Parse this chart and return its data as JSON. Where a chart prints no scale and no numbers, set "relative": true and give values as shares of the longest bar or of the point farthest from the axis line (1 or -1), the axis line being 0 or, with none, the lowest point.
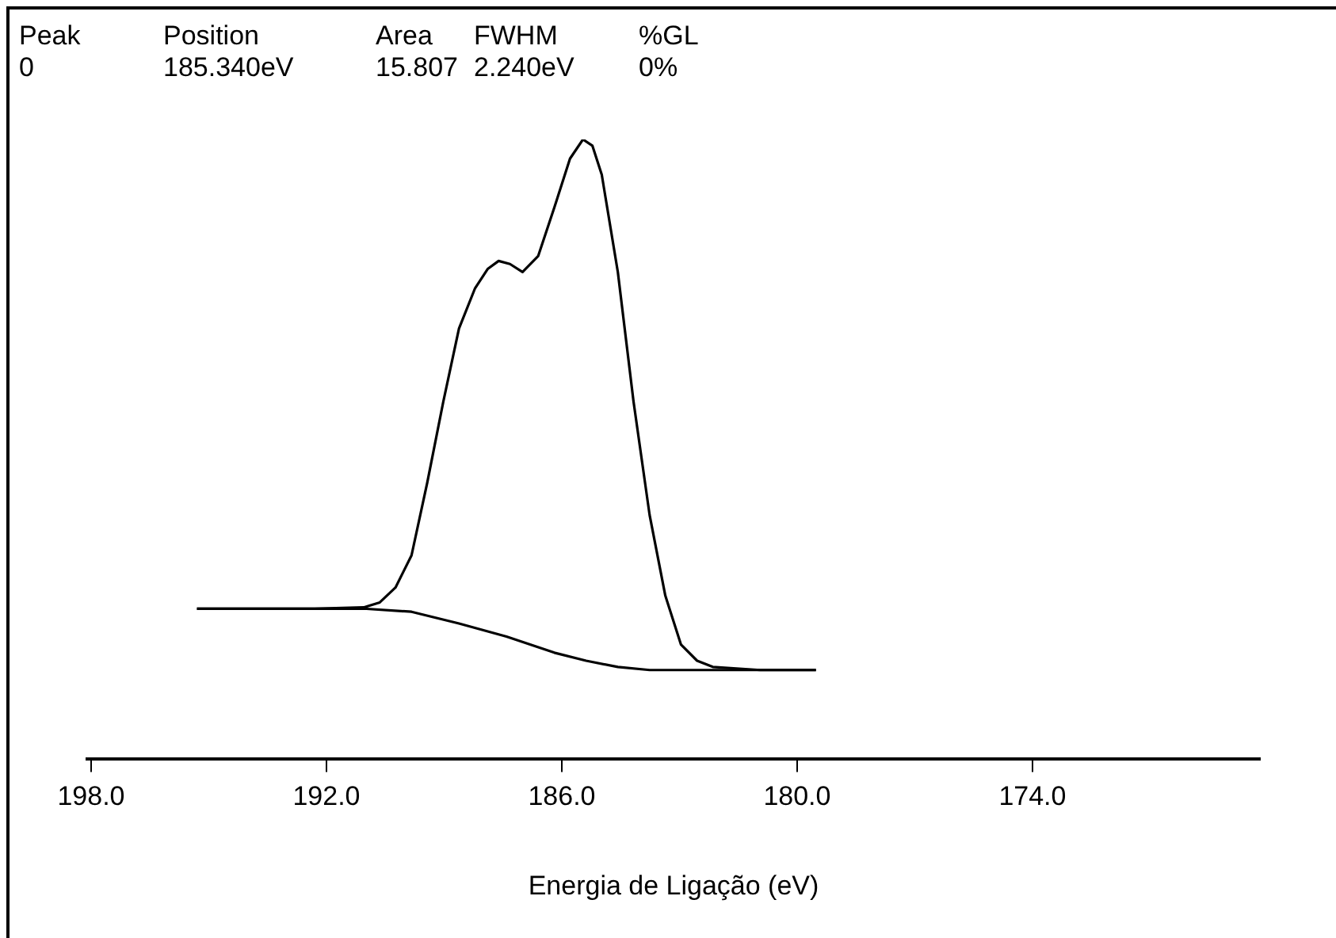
{
  "chart_data": {
    "type": "line",
    "relative": true,
    "xlabel": "Energia de Ligação (eV)",
    "annotations": [
      "Peak",
      "0",
      "Position",
      "185.340eV",
      "Area",
      "15.807",
      "FWHM",
      "2.240eV",
      "%GL",
      "0%"
    ],
    "xlim": [
      198.1,
      168.2
    ],
    "xticks": [
      {
        "value": 198,
        "label": "198.0"
      },
      {
        "value": 192,
        "label": "192.0"
      },
      {
        "value": 186,
        "label": "186.0"
      },
      {
        "value": 180,
        "label": "180.0"
      },
      {
        "value": 174,
        "label": "174.0"
      }
    ],
    "grid": false,
    "legend": false,
    "marker": "none",
    "line_style": "solid",
    "series": [
      {
        "color": "#000000",
        "x": [
          195.3,
          192.3,
          191.05,
          190.64,
          190.24,
          189.83,
          189.43,
          189.02,
          188.62,
          188.21,
          187.89,
          187.61,
          187.32,
          187.0,
          186.6,
          186.19,
          185.79,
          185.46,
          185.22,
          184.98,
          184.57,
          184.17,
          183.76,
          183.36,
          182.96,
          182.55,
          182.15,
          180.94,
          179.52
        ],
        "values": [
          0.243,
          0.243,
          0.245,
          0.253,
          0.277,
          0.329,
          0.446,
          0.577,
          0.695,
          0.76,
          0.791,
          0.804,
          0.799,
          0.786,
          0.812,
          0.89,
          0.969,
          1,
          0.99,
          0.943,
          0.786,
          0.577,
          0.394,
          0.264,
          0.185,
          0.159,
          0.149,
          0.144,
          0.144
        ]
      },
      {
        "color": "#000000",
        "x": [
          195.3,
          191.05,
          189.83,
          188.62,
          187.41,
          186.19,
          185.38,
          184.57,
          183.76,
          182.55,
          179.52
        ],
        "values": [
          0.243,
          0.243,
          0.238,
          0.219,
          0.198,
          0.172,
          0.159,
          0.149,
          0.144,
          0.144,
          0.144
        ]
      }
    ]
  }
}
